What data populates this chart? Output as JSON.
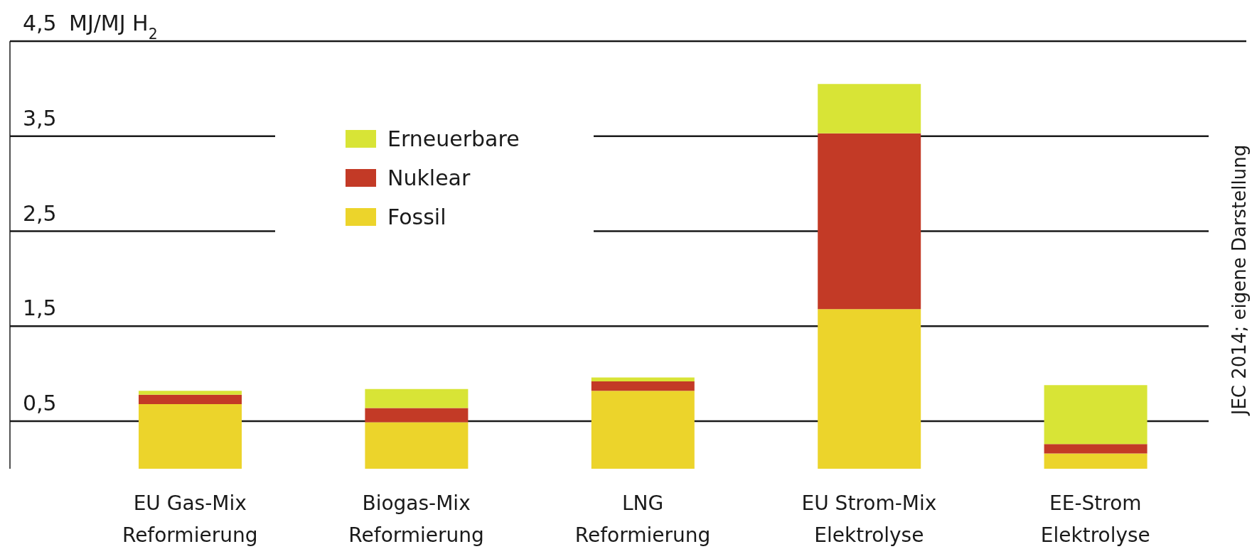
{
  "chart_data": {
    "type": "bar",
    "stacked": true,
    "categories": [
      "EU Gas-Mix\nReformierung",
      "Biogas-Mix\nReformierung",
      "LNG\nReformierung",
      "EU Strom-Mix\nElektrolyse",
      "EE-Strom\nElektrolyse"
    ],
    "series": [
      {
        "name": "Fossil",
        "color": "#ecd42b",
        "values": [
          0.68,
          0.49,
          0.82,
          1.68,
          0.16
        ]
      },
      {
        "name": "Nuklear",
        "color": "#c33a26",
        "values": [
          0.1,
          0.15,
          0.1,
          1.85,
          0.1
        ]
      },
      {
        "name": "Erneuerbare",
        "color": "#d8e436",
        "values": [
          0.04,
          0.2,
          0.04,
          0.52,
          0.62
        ]
      }
    ],
    "ylabel": "MJ/MJ H$_{2}$",
    "ylim": [
      0,
      4.5
    ],
    "yticks": [
      {
        "value": 0.5,
        "label": "0,5"
      },
      {
        "value": 1.5,
        "label": "1,5"
      },
      {
        "value": 2.5,
        "label": "2,5"
      },
      {
        "value": 3.5,
        "label": "3,5"
      },
      {
        "value": 4.5,
        "label": "4,5"
      }
    ],
    "grid": "y",
    "legend": "top left",
    "annotations": [
      "JEC 2014; eigene Darstellung"
    ]
  }
}
